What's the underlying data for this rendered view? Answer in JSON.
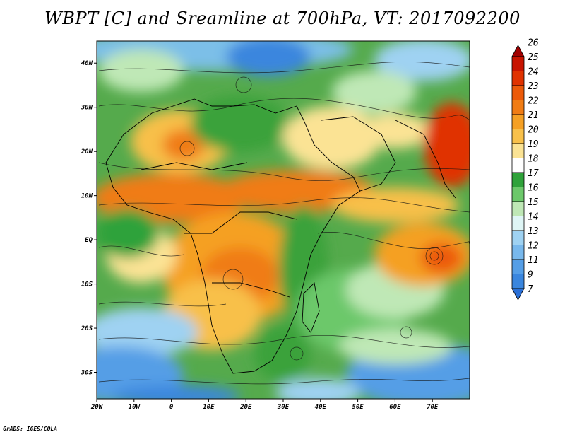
{
  "title": "WBPT [C] and Sreamline at 700hPa, VT: 2017092200",
  "credit": "GrADS: IGES/COLA",
  "map": {
    "lat_ticks": [
      "40N",
      "30N",
      "20N",
      "10N",
      "EQ",
      "10S",
      "20S",
      "30S"
    ],
    "lon_ticks": [
      "20W",
      "10W",
      "0",
      "10E",
      "20E",
      "30E",
      "40E",
      "50E",
      "60E",
      "70E"
    ],
    "lon_range": [
      -20,
      80
    ],
    "lat_range": [
      -36,
      45
    ]
  },
  "colorbar": {
    "levels": [
      "26",
      "25",
      "24",
      "23",
      "22",
      "21",
      "20",
      "19",
      "18",
      "17",
      "16",
      "15",
      "14",
      "13",
      "12",
      "11",
      "9",
      "7"
    ],
    "colors": [
      "#a00000",
      "#c81400",
      "#e03200",
      "#ec5a0a",
      "#f07c14",
      "#f5a024",
      "#f8c04a",
      "#fbe394",
      "#ffffff",
      "#2fa23a",
      "#6cc86a",
      "#bfe8b6",
      "#dff6f6",
      "#9fd2f2",
      "#78b8ec",
      "#559ee6",
      "#3a86de",
      "#2a6fd6"
    ]
  }
}
